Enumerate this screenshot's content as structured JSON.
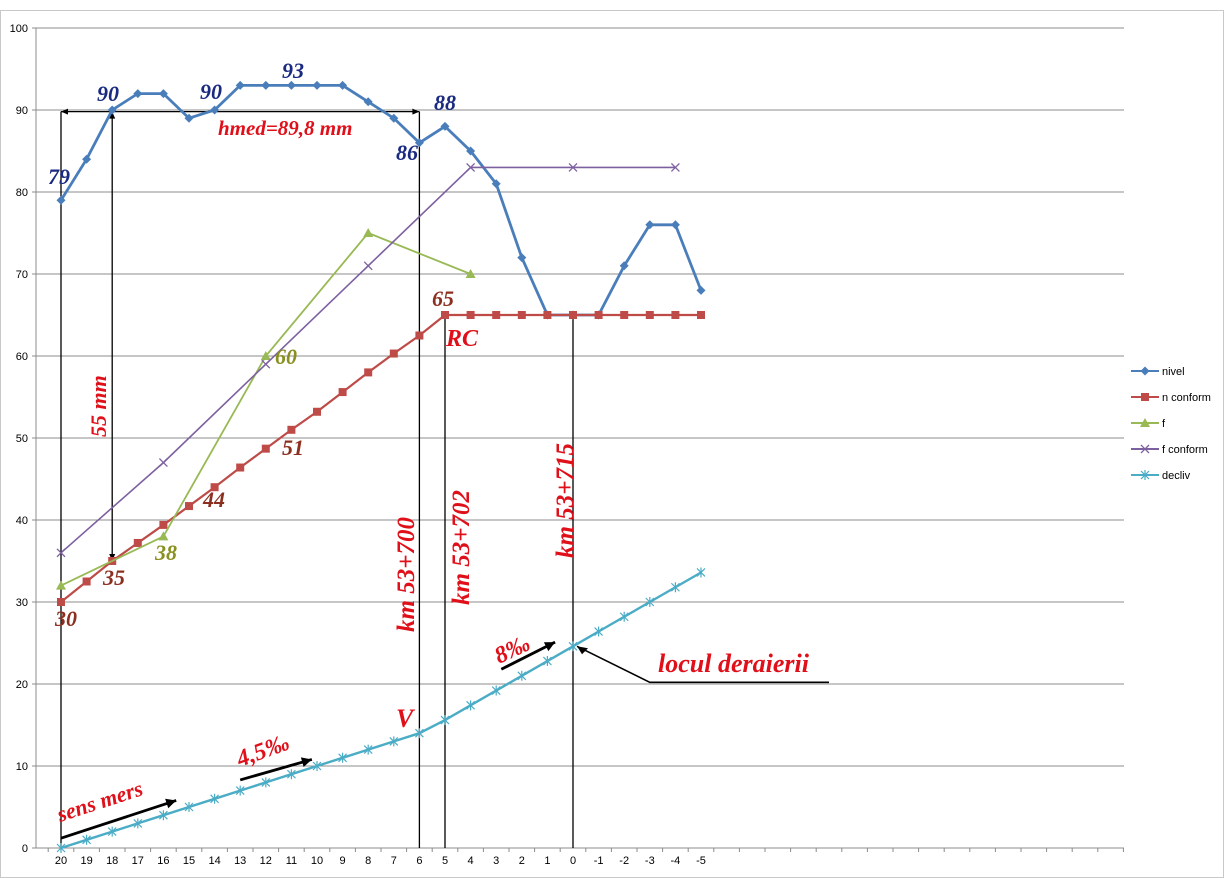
{
  "chart_data": {
    "type": "line",
    "categories": [
      "20",
      "19",
      "18",
      "17",
      "16",
      "15",
      "14",
      "13",
      "12",
      "11",
      "10",
      "9",
      "8",
      "7",
      "6",
      "5",
      "4",
      "3",
      "2",
      "1",
      "0",
      "-1",
      "-2",
      "-3",
      "-4",
      "-5"
    ],
    "ylim": [
      0,
      100
    ],
    "yticks": [
      "0",
      "10",
      "20",
      "30",
      "40",
      "50",
      "60",
      "70",
      "80",
      "90",
      "100"
    ],
    "grid": true,
    "legend_position": "right",
    "series": [
      {
        "name": "nivel",
        "color": "#4a7ebb",
        "marker": "diamond",
        "values": [
          79,
          84,
          90,
          92,
          92,
          89,
          90,
          93,
          93,
          93,
          93,
          93,
          91,
          89,
          86,
          88,
          85,
          81,
          72,
          65,
          65,
          65,
          71,
          76,
          76,
          68
        ]
      },
      {
        "name": "n conform",
        "color": "#be4b48",
        "marker": "square",
        "values": [
          30,
          32.5,
          35,
          37.2,
          39.4,
          41.7,
          44,
          46.4,
          48.7,
          51,
          53.2,
          55.6,
          58,
          60.3,
          62.5,
          65,
          65,
          65,
          65,
          65,
          65,
          65,
          65,
          65,
          65,
          65
        ]
      },
      {
        "name": "f",
        "color": "#98b954",
        "marker": "triangle",
        "values": [
          32,
          null,
          null,
          null,
          38,
          null,
          null,
          null,
          60,
          null,
          null,
          null,
          75,
          null,
          null,
          null,
          70,
          null,
          null,
          null,
          null,
          null,
          null,
          null,
          null,
          null
        ]
      },
      {
        "name": "f conform",
        "color": "#7d60a0",
        "marker": "x",
        "values": [
          36,
          null,
          null,
          null,
          47,
          null,
          null,
          null,
          59,
          null,
          null,
          null,
          71,
          null,
          null,
          null,
          83,
          null,
          null,
          null,
          83,
          null,
          null,
          null,
          83,
          null
        ]
      },
      {
        "name": "decliv",
        "color": "#4bacc6",
        "marker": "star",
        "values": [
          0,
          1,
          2,
          3,
          4,
          5,
          6,
          7,
          8,
          9,
          10,
          11,
          12,
          13,
          14,
          15.6,
          17.4,
          19.2,
          21,
          22.8,
          24.6,
          26.4,
          28.2,
          30,
          31.8,
          33.6
        ]
      }
    ],
    "annotations": {
      "nivel_labels": [
        "79",
        "90",
        "90",
        "93",
        "86",
        "88"
      ],
      "n_labels": [
        "30",
        "35",
        "44",
        "51",
        "65"
      ],
      "f_labels": [
        "38",
        "60"
      ],
      "text": {
        "hmed": "hmed=89,8 mm",
        "mm55": "55 mm",
        "rc": "RC",
        "km700": "km 53+700",
        "km702": "km 53+702",
        "km715": "km 53+715",
        "v": "V",
        "slope1": "4,5‰",
        "slope2": "8‰",
        "locul": "locul deraierii",
        "sens": "sens mers"
      }
    }
  }
}
